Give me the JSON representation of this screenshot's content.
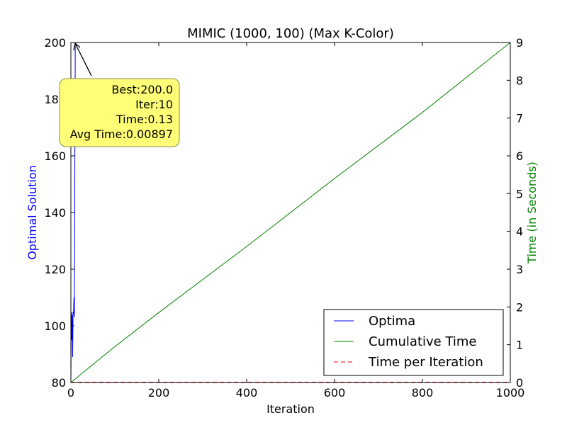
{
  "chart_data": {
    "type": "line",
    "title": "MIMIC (1000, 100) (Max K-Color)",
    "xlabel": "Iteration",
    "ylabel_left": "Optimal Solution",
    "ylabel_right": "Time (in Seconds)",
    "xlim": [
      0,
      1000
    ],
    "ylim_left": [
      80,
      200
    ],
    "ylim_right": [
      0,
      9
    ],
    "x_ticks": [
      0,
      200,
      400,
      600,
      800,
      1000
    ],
    "y_left_ticks": [
      80,
      100,
      120,
      140,
      160,
      180,
      200
    ],
    "y_right_ticks": [
      0,
      1,
      2,
      3,
      4,
      5,
      6,
      7,
      8,
      9
    ],
    "grid": false,
    "legend_position": "lower-right",
    "series": [
      {
        "name": "Optima",
        "axis": "left",
        "color": "#0000ff",
        "style": "solid",
        "points": [
          [
            0,
            80
          ],
          [
            1,
            105
          ],
          [
            2,
            95
          ],
          [
            3,
            104
          ],
          [
            4,
            89
          ],
          [
            5,
            105
          ],
          [
            6,
            104
          ],
          [
            7,
            110
          ],
          [
            8,
            103
          ],
          [
            9,
            155
          ],
          [
            10,
            200
          ],
          [
            1000,
            200
          ]
        ]
      },
      {
        "name": "Cumulative Time",
        "axis": "right",
        "color": "#008000",
        "style": "solid",
        "points": [
          [
            0,
            0
          ],
          [
            100,
            0.95
          ],
          [
            200,
            1.85
          ],
          [
            400,
            3.6
          ],
          [
            600,
            5.4
          ],
          [
            800,
            7.15
          ],
          [
            1000,
            9.0
          ]
        ]
      },
      {
        "name": "Time per Iteration",
        "axis": "right",
        "color": "#ff0000",
        "style": "dashed",
        "points": [
          [
            0,
            0.009
          ],
          [
            1000,
            0.009
          ]
        ]
      }
    ],
    "annotation": {
      "lines": [
        "Best:200.0",
        "Iter:10",
        "Time:0.13",
        "Avg Time:0.00897"
      ],
      "point": [
        10,
        200
      ],
      "box_color": "#ffff77"
    }
  },
  "colors": {
    "left_axis_label": "#0000ff",
    "right_axis_label": "#008000"
  }
}
